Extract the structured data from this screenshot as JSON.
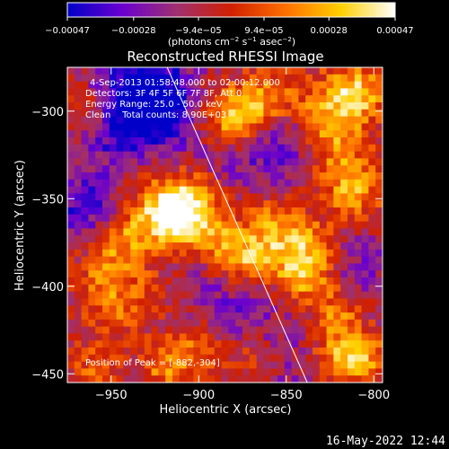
{
  "chart_data": {
    "type": "heatmap",
    "title": "Reconstructed RHESSI Image",
    "xlabel": "Heliocentric X (arcsec)",
    "ylabel": "Heliocentric Y (arcsec)",
    "xlim": [
      -975,
      -795
    ],
    "ylim": [
      -455,
      -275
    ],
    "x_ticks": [
      -950,
      -900,
      -850,
      -800
    ],
    "y_ticks": [
      -300,
      -350,
      -400,
      -450
    ],
    "x_tick_labels": [
      "−950",
      "−900",
      "−850",
      "−800"
    ],
    "y_tick_labels": [
      "−300",
      "−350",
      "−400",
      "−450"
    ],
    "colorbar": {
      "range": [
        -0.00047,
        0.00047
      ],
      "tick_values": [
        -0.00047,
        -0.00028,
        -9.4e-05,
        9.4e-05,
        0.00028,
        0.00047
      ],
      "tick_labels": [
        "−0.00047",
        "−0.00028",
        "−9.4e−05",
        "9.4e−05",
        "0.00028",
        "0.00047"
      ],
      "unit_label_parts": [
        "(photons cm",
        "−2",
        " s",
        "−1",
        " asec",
        "−2",
        ")"
      ],
      "colors": [
        "#0000c8",
        "#6a00d0",
        "#a03070",
        "#d02000",
        "#ff7000",
        "#ffd000",
        "#ffffff"
      ]
    },
    "annotations": [
      "4-Sep-2013 01:58:48.000 to 02:00:12.000",
      "Detectors: 3F 4F 5F 6F 7F 8F, Att 0",
      "Energy Range: 25.0 - 50.0 keV",
      "Clean    Total counts: 8.90E+03"
    ],
    "peak_label": "Position of Peak = [-882,-304]",
    "limb_line": [
      [
        -918,
        -275
      ],
      [
        -838,
        -455
      ]
    ],
    "grid": false,
    "blobs": [
      {
        "x": -930,
        "y": -285,
        "a": -0.00045,
        "s": 18
      },
      {
        "x": -950,
        "y": -310,
        "a": -0.00025,
        "s": 16
      },
      {
        "x": -965,
        "y": -355,
        "a": -0.0003,
        "s": 14
      },
      {
        "x": -925,
        "y": -305,
        "a": -0.00022,
        "s": 14
      },
      {
        "x": -880,
        "y": -330,
        "a": -0.00018,
        "s": 22
      },
      {
        "x": -850,
        "y": -315,
        "a": -0.0002,
        "s": 16
      },
      {
        "x": -880,
        "y": -420,
        "a": -0.0002,
        "s": 20
      },
      {
        "x": -895,
        "y": -380,
        "a": -0.00016,
        "s": 16
      },
      {
        "x": -810,
        "y": -390,
        "a": -0.00015,
        "s": 18
      },
      {
        "x": -845,
        "y": -445,
        "a": -0.00012,
        "s": 14
      },
      {
        "x": -905,
        "y": -355,
        "a": 0.00047,
        "s": 14
      },
      {
        "x": -920,
        "y": -360,
        "a": 0.00038,
        "s": 14
      },
      {
        "x": -890,
        "y": -375,
        "a": 0.00032,
        "s": 12
      },
      {
        "x": -875,
        "y": -385,
        "a": 0.0003,
        "s": 10
      },
      {
        "x": -855,
        "y": -380,
        "a": 0.0003,
        "s": 12
      },
      {
        "x": -860,
        "y": -360,
        "a": 0.00022,
        "s": 12
      },
      {
        "x": -838,
        "y": -395,
        "a": 0.00036,
        "s": 10
      },
      {
        "x": -835,
        "y": -375,
        "a": 0.00026,
        "s": 10
      },
      {
        "x": -945,
        "y": -375,
        "a": 0.00026,
        "s": 12
      },
      {
        "x": -955,
        "y": -395,
        "a": 0.00022,
        "s": 10
      },
      {
        "x": -950,
        "y": -415,
        "a": 0.00018,
        "s": 10
      },
      {
        "x": -965,
        "y": -300,
        "a": 0.00026,
        "s": 10
      },
      {
        "x": -930,
        "y": -405,
        "a": 0.00015,
        "s": 10
      },
      {
        "x": -880,
        "y": -304,
        "a": 0.00047,
        "s": 12
      },
      {
        "x": -860,
        "y": -295,
        "a": 0.0003,
        "s": 12
      },
      {
        "x": -830,
        "y": -300,
        "a": 0.00026,
        "s": 12
      },
      {
        "x": -810,
        "y": -290,
        "a": 0.0004,
        "s": 12
      },
      {
        "x": -812,
        "y": -345,
        "a": 0.00034,
        "s": 12
      },
      {
        "x": -822,
        "y": -320,
        "a": 0.00024,
        "s": 12
      },
      {
        "x": -820,
        "y": -415,
        "a": 0.0003,
        "s": 10
      },
      {
        "x": -808,
        "y": -440,
        "a": 0.00036,
        "s": 10
      },
      {
        "x": -825,
        "y": -440,
        "a": 0.00022,
        "s": 10
      },
      {
        "x": -900,
        "y": -435,
        "a": 0.00026,
        "s": 12
      },
      {
        "x": -920,
        "y": -445,
        "a": 0.00024,
        "s": 10
      },
      {
        "x": -870,
        "y": -440,
        "a": 0.0002,
        "s": 10
      },
      {
        "x": -960,
        "y": -445,
        "a": 0.00018,
        "s": 10
      }
    ]
  },
  "timestamp": "16-May-2022 12:44"
}
